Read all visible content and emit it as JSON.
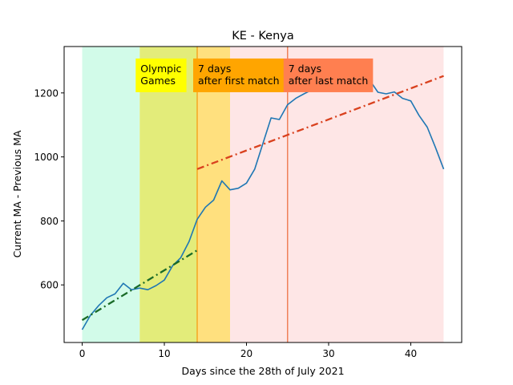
{
  "chart_data": {
    "type": "line",
    "title": "KE - Kenya",
    "xlabel": "Days since the 28th of July 2021",
    "ylabel": "Current MA - Previous MA",
    "xlim": [
      -2.2,
      46.2
    ],
    "ylim": [
      420,
      1345
    ],
    "xticks": [
      0,
      10,
      20,
      30,
      40
    ],
    "yticks": [
      600,
      800,
      1000,
      1200
    ],
    "grid": false,
    "series": [
      {
        "style": "solid",
        "color": "#1f77b4",
        "x": [
          0,
          1,
          2,
          3,
          4,
          5,
          6,
          7,
          8,
          9,
          10,
          11,
          12,
          13,
          14,
          15,
          16,
          17,
          18,
          19,
          20,
          21,
          22,
          23,
          24,
          25,
          26,
          27,
          28,
          29,
          30,
          31,
          32,
          33,
          34,
          35,
          36,
          37,
          38,
          39,
          40,
          41,
          42,
          43,
          44
        ],
        "y": [
          460,
          505,
          535,
          560,
          572,
          605,
          585,
          590,
          585,
          598,
          615,
          660,
          685,
          735,
          805,
          843,
          865,
          925,
          897,
          902,
          918,
          962,
          1042,
          1122,
          1117,
          1163,
          1183,
          1197,
          1210,
          1222,
          1230,
          1240,
          1252,
          1268,
          1305,
          1240,
          1202,
          1197,
          1203,
          1183,
          1175,
          1130,
          1093,
          1030,
          962
        ]
      },
      {
        "style": "dashdot",
        "color": "#1a6b28",
        "x": [
          0,
          14
        ],
        "y": [
          490,
          708
        ]
      },
      {
        "style": "dashdot",
        "color": "#d9411e",
        "x": [
          14,
          44
        ],
        "y": [
          962,
          1253
        ]
      }
    ],
    "regions": [
      {
        "x0": 0,
        "x1": 7,
        "color": "#d2fbe9"
      },
      {
        "x0": 7,
        "x1": 14,
        "color": "#e3ec7a"
      },
      {
        "x0": 14,
        "x1": 18,
        "color": "#ffe07e"
      },
      {
        "x0": 18,
        "x1": 44,
        "color": "#fee6e6"
      }
    ],
    "vlines": [
      {
        "x": 14,
        "color": "#f5a623"
      },
      {
        "x": 25,
        "color": "#f0805a"
      }
    ],
    "annotations": [
      {
        "text": "Olympic\nGames",
        "x": 7,
        "y": 1295,
        "bg": "#ffff00"
      },
      {
        "text": "7 days\nafter first match",
        "x": 14,
        "y": 1295,
        "bg": "#ffa500"
      },
      {
        "text": "7 days\nafter last match",
        "x": 25,
        "y": 1295,
        "bg": "#ff7f50"
      }
    ]
  }
}
